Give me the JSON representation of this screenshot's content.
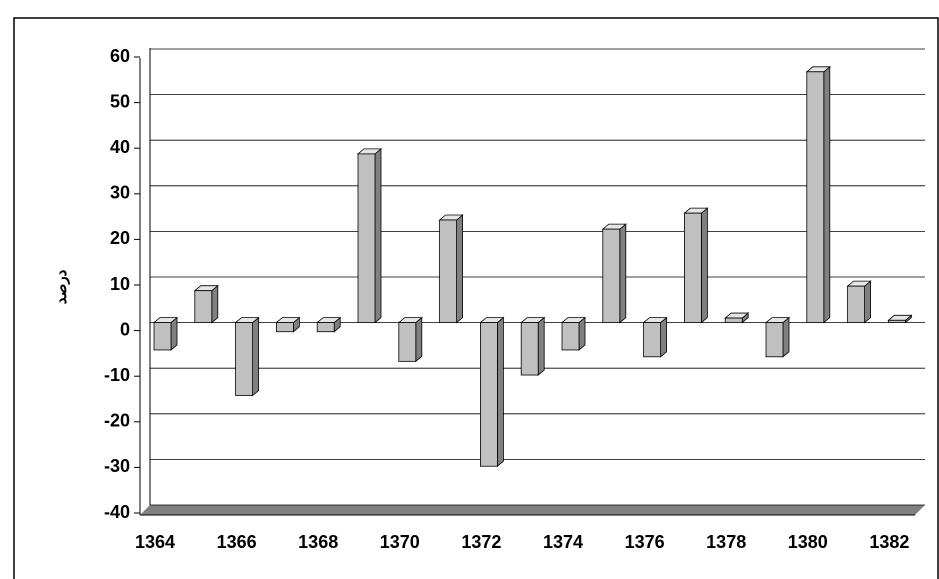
{
  "chart_data": {
    "type": "bar3d",
    "y_label": "درصد",
    "categories": [
      "1364",
      null,
      "1366",
      null,
      "1368",
      null,
      "1370",
      null,
      "1372",
      null,
      "1374",
      null,
      "1376",
      null,
      "1378",
      null,
      "1380",
      null,
      "1382"
    ],
    "values": [
      -6,
      7,
      -16,
      -2,
      -2,
      37,
      -8.5,
      22.5,
      -31.5,
      -11.5,
      -6,
      20.5,
      -7.5,
      24,
      1,
      -7.5,
      55,
      8,
      0.5
    ],
    "color": "#c0c0c0",
    "ylim": [
      -40,
      60
    ],
    "yticks": [
      -40,
      -30,
      -20,
      -10,
      0,
      10,
      20,
      30,
      40,
      50,
      60
    ],
    "grid": true
  }
}
